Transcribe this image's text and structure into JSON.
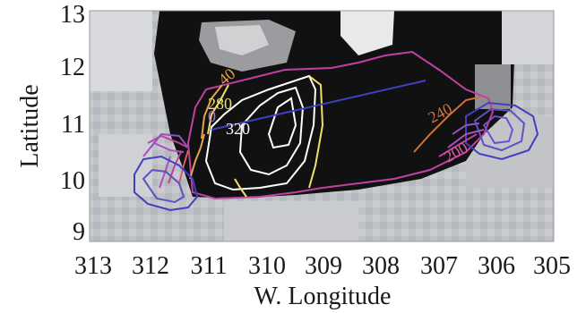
{
  "figure": {
    "y_axis_label": "Latitude",
    "x_axis_label": "W. Longitude",
    "x_ticks": [
      "313",
      "312",
      "311",
      "310",
      "309",
      "308",
      "307",
      "306",
      "305"
    ],
    "y_ticks": [
      "13",
      "12",
      "11",
      "10",
      "9"
    ],
    "contour_labels": [
      {
        "text": "280",
        "color": "#f0e06a"
      },
      {
        "text": "40",
        "color": "#e8a04a"
      },
      {
        "text": "0",
        "color": "#b070d0"
      },
      {
        "text": "320",
        "color": "#ffffff"
      },
      {
        "text": "240",
        "color": "#d0703a"
      },
      {
        "text": "200",
        "color": "#d060a0"
      }
    ]
  },
  "chart_data": {
    "type": "contour-map",
    "x_range": [
      313,
      305
    ],
    "y_range": [
      8.8,
      13.1
    ],
    "x_ticks": [
      313,
      312,
      311,
      310,
      309,
      308,
      307,
      306,
      305
    ],
    "y_ticks": [
      13,
      12,
      11,
      10,
      9
    ],
    "xlabel": "W. Longitude",
    "ylabel": "Latitude",
    "contour_levels": [
      200,
      240,
      280,
      320
    ],
    "profile_line": {
      "start": [
        310.9,
        10.9
      ],
      "end": [
        307.2,
        11.75
      ],
      "color": "#4040c0"
    }
  }
}
